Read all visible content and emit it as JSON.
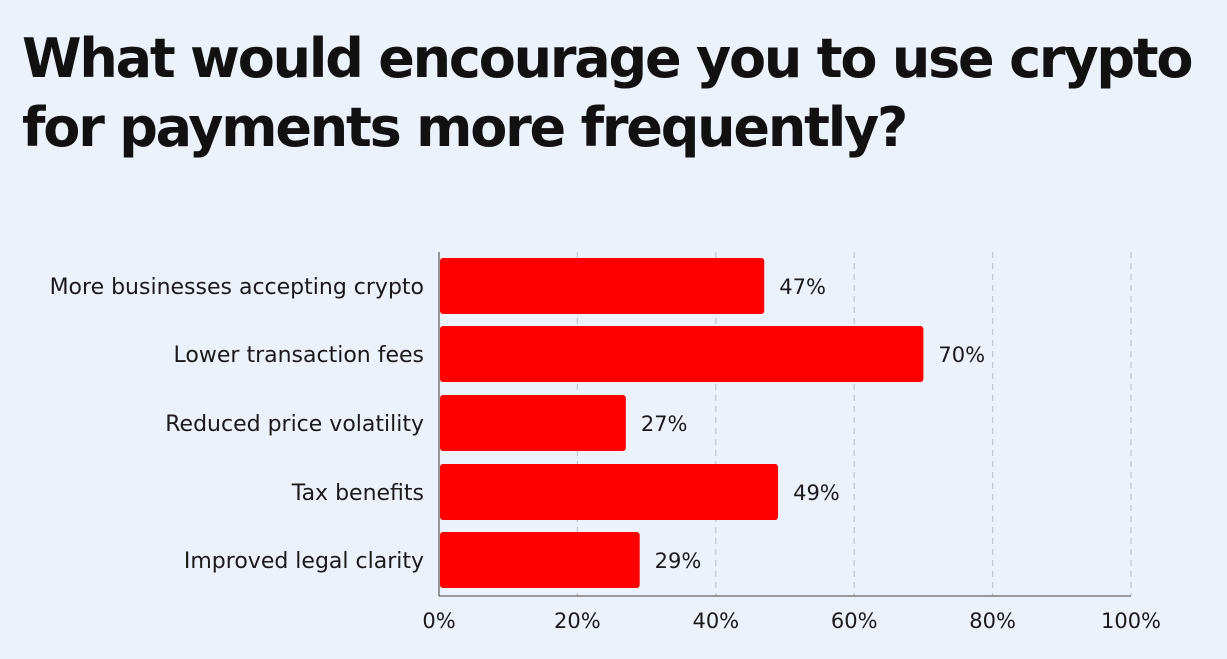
{
  "title": "What would encourage you to use crypto for payments more frequently?",
  "colors": {
    "bar": "#ff0000",
    "grid": "#c4c8cf",
    "axis": "#666666",
    "background": "#ecf2fb"
  },
  "chart_data": {
    "type": "bar",
    "orientation": "horizontal",
    "title": "What would encourage you to use crypto for payments more frequently?",
    "categories": [
      "More businesses accepting crypto",
      "Lower transaction fees",
      "Reduced price volatility",
      "Tax benefits",
      "Improved legal clarity"
    ],
    "values": [
      47,
      70,
      27,
      49,
      29
    ],
    "value_labels": [
      "47%",
      "70%",
      "27%",
      "49%",
      "29%"
    ],
    "xlim": [
      0,
      100
    ],
    "xticks": [
      0,
      20,
      40,
      60,
      80,
      100
    ],
    "xtick_labels": [
      "0%",
      "20%",
      "40%",
      "60%",
      "80%",
      "100%"
    ],
    "xlabel": "",
    "ylabel": "",
    "grid": "vertical dashed",
    "legend": "none"
  }
}
